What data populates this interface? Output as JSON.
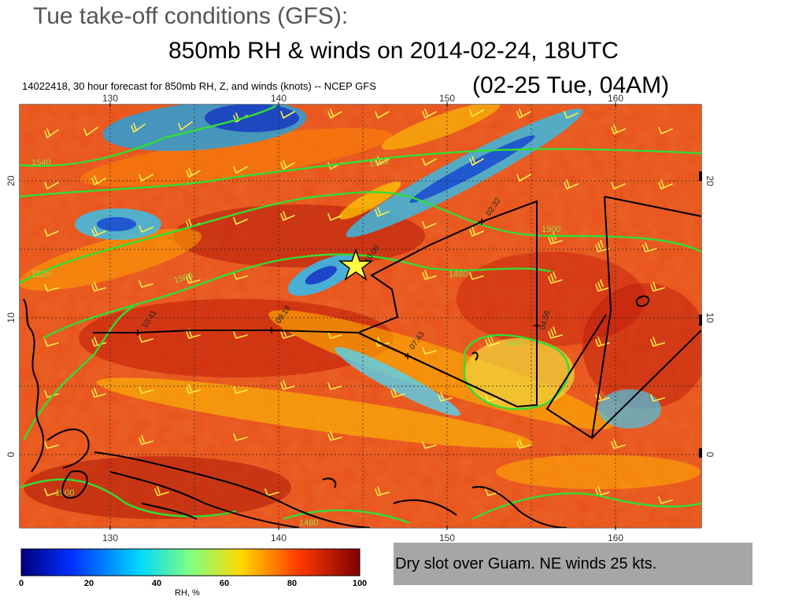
{
  "title": {
    "line1": "Tue take-off conditions  (GFS):",
    "line2": "850mb RH & winds on 2014-02-24, 18UTC",
    "line3": "(02-25 Tue, 04AM)"
  },
  "map": {
    "header": "14022418, 30 hour forecast for 850mb RH, Z, and winds (knots) -- NCEP GFS",
    "lon_labels": [
      "130",
      "140",
      "150",
      "160"
    ],
    "lat_labels": [
      "20",
      "10",
      "0"
    ],
    "contour_labels": [
      "1540",
      "1520",
      "1520",
      "1500",
      "1500",
      "1480",
      "1480",
      "1500",
      "1480"
    ],
    "track_times": [
      "02:32",
      "10:00",
      "04:56",
      "07:43",
      "10:41",
      "09:18"
    ],
    "colors": {
      "contour": "#33dd33",
      "barb": "#ffef4a",
      "track": "#000000",
      "star": "#ffff44"
    }
  },
  "colorbar": {
    "title": "RH, %",
    "ticks": [
      "0",
      "20",
      "40",
      "60",
      "80",
      "100"
    ],
    "colors": [
      "#00007f",
      "#0050ff",
      "#00d4ff",
      "#7fff7f",
      "#ffd400",
      "#ff4400",
      "#7f0000"
    ]
  },
  "annotation": {
    "text": "Dry slot over Guam. NE winds 25 kts."
  }
}
